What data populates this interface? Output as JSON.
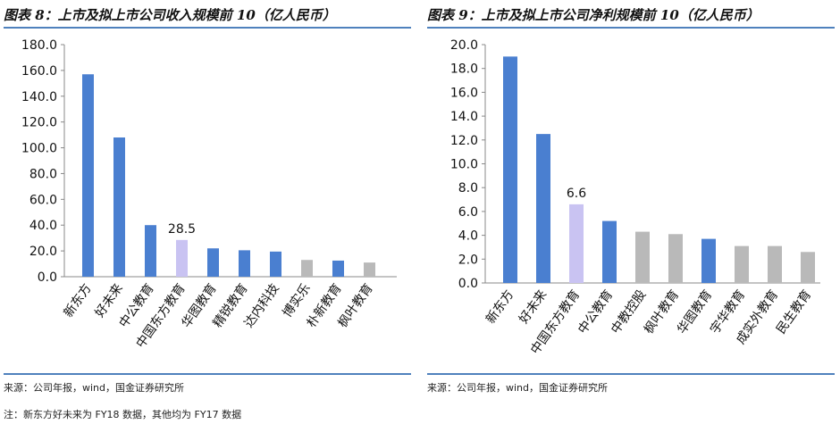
{
  "panels": [
    {
      "title": "图表 8：上市及拟上市公司收入规模前 10（亿人民币）",
      "source": "来源：公司年报，wind，国金证券研究所"
    },
    {
      "title": "图表 9：上市及拟上市公司净利规模前 10（亿人民币）",
      "source": "来源：公司年报，wind，国金证券研究所"
    }
  ],
  "footnote": "注：新东方好未来为 FY18 数据，其他均为 FY17 数据",
  "colors": {
    "blue": "#4a7fd0",
    "highlight": "#c9c3f2",
    "gray": "#b9b9b9",
    "rule": "#4f81bd"
  },
  "chart_data": [
    {
      "type": "bar",
      "title": "图表 8：上市及拟上市公司收入规模前 10（亿人民币）",
      "categories": [
        "新东方",
        "好未来",
        "中公教育",
        "中国东方教育",
        "华图教育",
        "精锐教育",
        "达内科技",
        "博实乐",
        "朴新教育",
        "枫叶教育"
      ],
      "values": [
        157.0,
        108.0,
        40.0,
        28.5,
        22.0,
        20.5,
        19.5,
        13.0,
        12.5,
        11.0
      ],
      "bar_colors": [
        "blue",
        "blue",
        "blue",
        "highlight",
        "blue",
        "blue",
        "blue",
        "gray",
        "blue",
        "gray"
      ],
      "data_labels": [
        null,
        null,
        null,
        "28.5",
        null,
        null,
        null,
        null,
        null,
        null
      ],
      "ylim": [
        0,
        180
      ],
      "yticks": [
        "0.0",
        "20.0",
        "40.0",
        "60.0",
        "80.0",
        "100.0",
        "120.0",
        "140.0",
        "160.0",
        "180.0"
      ],
      "xlabel": "",
      "ylabel": "",
      "grid": false
    },
    {
      "type": "bar",
      "title": "图表 9：上市及拟上市公司净利规模前 10（亿人民币）",
      "categories": [
        "新东方",
        "好未来",
        "中国东方教育",
        "中公教育",
        "中教控股",
        "枫叶教育",
        "华图教育",
        "宇华教育",
        "成实外教育",
        "民生教育"
      ],
      "values": [
        19.0,
        12.5,
        6.6,
        5.2,
        4.3,
        4.1,
        3.7,
        3.1,
        3.1,
        2.6
      ],
      "bar_colors": [
        "blue",
        "blue",
        "highlight",
        "blue",
        "gray",
        "gray",
        "blue",
        "gray",
        "gray",
        "gray"
      ],
      "data_labels": [
        null,
        null,
        "6.6",
        null,
        null,
        null,
        null,
        null,
        null,
        null
      ],
      "ylim": [
        0,
        20
      ],
      "yticks": [
        "0.0",
        "2.0",
        "4.0",
        "6.0",
        "8.0",
        "10.0",
        "12.0",
        "14.0",
        "16.0",
        "18.0",
        "20.0"
      ],
      "xlabel": "",
      "ylabel": "",
      "grid": false
    }
  ]
}
